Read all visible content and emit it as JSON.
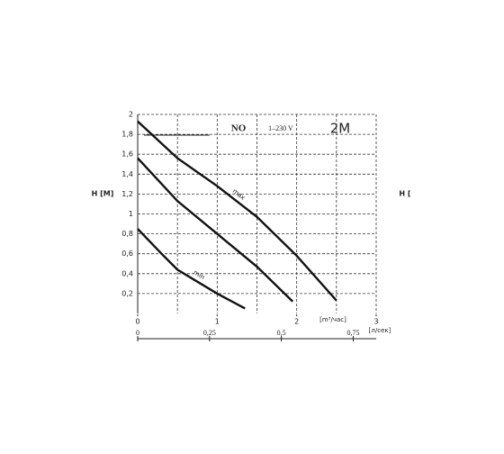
{
  "chart_data": {
    "type": "line",
    "y_label": "H [M]",
    "y2_label": "H [",
    "header": [
      "NO",
      "1–230 V",
      "2M"
    ],
    "x_unit": "[m³/час]",
    "x2_unit": "[л/сек]",
    "xlim": [
      0,
      3
    ],
    "xticks": [
      0,
      1,
      2,
      3
    ],
    "ylim": [
      0,
      2
    ],
    "yticks": [
      {
        "value": 0.2,
        "label": "0,2"
      },
      {
        "value": 0.4,
        "label": "0,4"
      },
      {
        "value": 0.6,
        "label": "0,6"
      },
      {
        "value": 0.8,
        "label": "0,8"
      },
      1,
      {
        "value": 1.2,
        "label": "1,2"
      },
      {
        "value": 1.4,
        "label": "1,4"
      },
      {
        "value": 1.6,
        "label": "1,6"
      },
      {
        "value": 1.8,
        "label": "1,8"
      },
      2
    ],
    "xgrid": [
      0.5,
      1,
      1.5,
      2,
      2.5,
      3
    ],
    "x2lim": [
      0,
      0.83
    ],
    "x2ticks": [
      0,
      {
        "value": 0.25,
        "label": "0,25"
      },
      {
        "value": 0.5,
        "label": "0,5"
      },
      {
        "value": 0.75,
        "label": "0,75"
      }
    ],
    "grid": true,
    "series": [
      {
        "name": "max",
        "color": "#111",
        "x": [
          0,
          0.5,
          1,
          1.5,
          2,
          2.5
        ],
        "values": [
          1.93,
          1.56,
          1.28,
          0.97,
          0.58,
          0.13
        ]
      },
      {
        "color": "#111",
        "x": [
          0,
          0.5,
          1,
          1.5,
          1.95
        ],
        "values": [
          1.56,
          1.13,
          0.8,
          0.47,
          0.12
        ]
      },
      {
        "name": "min",
        "color": "#111",
        "x": [
          0,
          0.3,
          0.5,
          1,
          1.35
        ],
        "values": [
          0.85,
          0.6,
          0.44,
          0.2,
          0.05
        ]
      }
    ]
  }
}
